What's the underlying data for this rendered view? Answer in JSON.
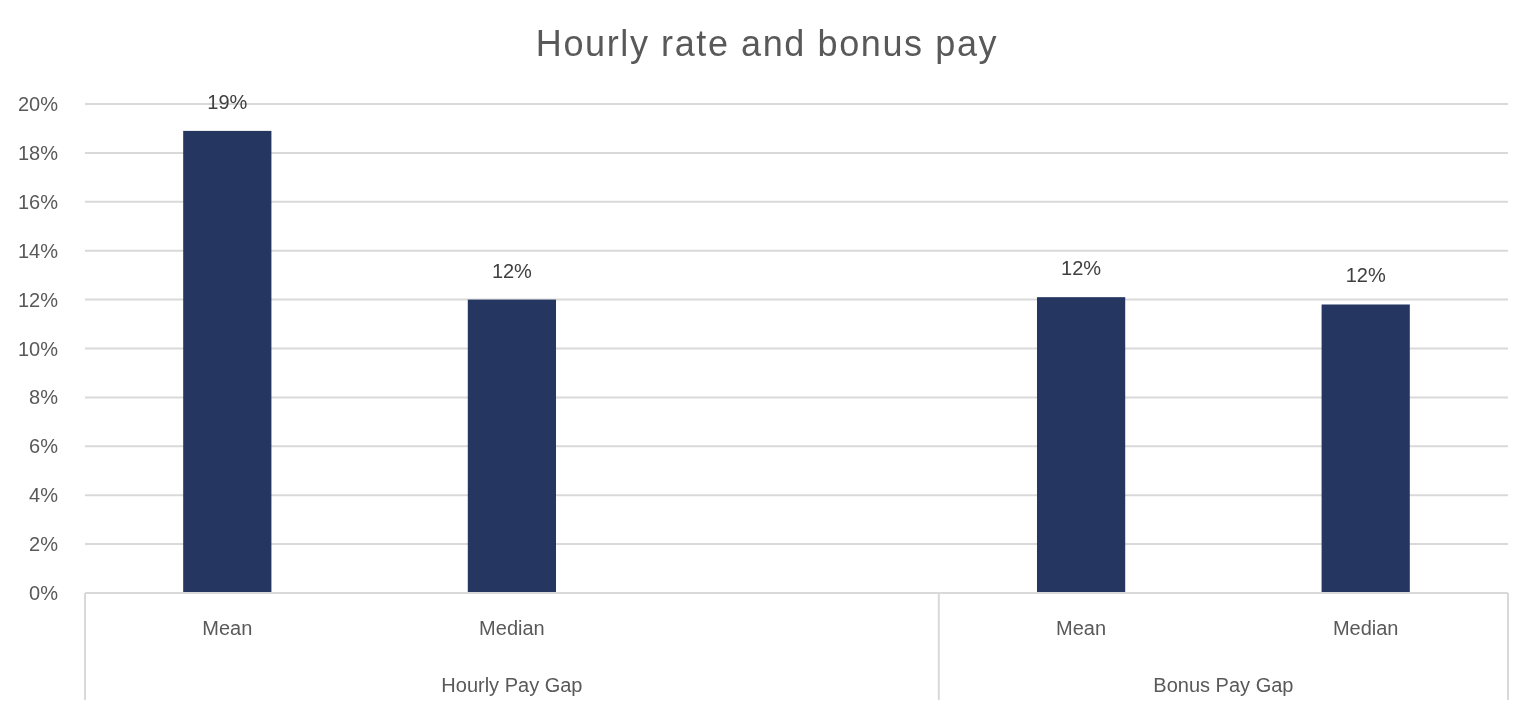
{
  "chart_data": {
    "type": "bar",
    "title": "Hourly rate and bonus pay",
    "categories": [
      "Mean",
      "Median",
      null,
      "Mean",
      "Median"
    ],
    "values": [
      18.9,
      12.0,
      null,
      12.1,
      11.8
    ],
    "color": "#253761",
    "value_labels": [
      "19%",
      "12%",
      null,
      "12%",
      "12%"
    ],
    "ylim": [
      0,
      20
    ],
    "yticks": [
      {
        "value": 0,
        "label": "0%"
      },
      {
        "value": 2,
        "label": "2%"
      },
      {
        "value": 4,
        "label": "4%"
      },
      {
        "value": 6,
        "label": "6%"
      },
      {
        "value": 8,
        "label": "8%"
      },
      {
        "value": 10,
        "label": "10%"
      },
      {
        "value": 12,
        "label": "12%"
      },
      {
        "value": 14,
        "label": "14%"
      },
      {
        "value": 16,
        "label": "16%"
      },
      {
        "value": 18,
        "label": "18%"
      },
      {
        "value": 20,
        "label": "20%"
      }
    ],
    "grid": "y",
    "annotations": [
      "Hourly Pay Gap",
      "Bonus Pay Gap"
    ]
  }
}
